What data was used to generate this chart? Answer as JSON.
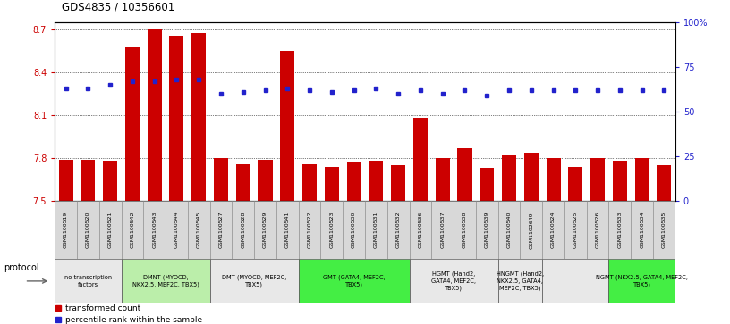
{
  "title": "GDS4835 / 10356601",
  "samples": [
    "GSM1100519",
    "GSM1100520",
    "GSM1100521",
    "GSM1100542",
    "GSM1100543",
    "GSM1100544",
    "GSM1100545",
    "GSM1100527",
    "GSM1100528",
    "GSM1100529",
    "GSM1100541",
    "GSM1100522",
    "GSM1100523",
    "GSM1100530",
    "GSM1100531",
    "GSM1100532",
    "GSM1100536",
    "GSM1100537",
    "GSM1100538",
    "GSM1100539",
    "GSM1100540",
    "GSM1102649",
    "GSM1100524",
    "GSM1100525",
    "GSM1100526",
    "GSM1100533",
    "GSM1100534",
    "GSM1100535"
  ],
  "bar_values": [
    7.79,
    7.79,
    7.78,
    8.58,
    8.7,
    8.66,
    8.68,
    7.8,
    7.76,
    7.79,
    8.55,
    7.76,
    7.74,
    7.77,
    7.78,
    7.75,
    8.08,
    7.8,
    7.87,
    7.73,
    7.82,
    7.84,
    7.8,
    7.74,
    7.8,
    7.78,
    7.8,
    7.75
  ],
  "percentile_values": [
    63,
    63,
    65,
    67,
    67,
    68,
    68,
    60,
    61,
    62,
    63,
    62,
    61,
    62,
    63,
    60,
    62,
    60,
    62,
    59,
    62,
    62,
    62,
    62,
    62,
    62,
    62,
    62
  ],
  "bar_color": "#cc0000",
  "percentile_color": "#2222cc",
  "ylim_left": [
    7.5,
    8.75
  ],
  "ylim_right": [
    0,
    100
  ],
  "yticks_left": [
    7.5,
    7.8,
    8.1,
    8.4,
    8.7
  ],
  "yticks_right": [
    0,
    25,
    50,
    75,
    100
  ],
  "ytick_labels_right": [
    "0",
    "25",
    "50",
    "75",
    "100%"
  ],
  "groups": [
    {
      "label": "no transcription\nfactors",
      "start": 0,
      "end": 3,
      "color": "#e8e8e8"
    },
    {
      "label": "DMNT (MYOCD,\nNKX2.5, MEF2C, TBX5)",
      "start": 3,
      "end": 7,
      "color": "#bbeeaa"
    },
    {
      "label": "DMT (MYOCD, MEF2C,\nTBX5)",
      "start": 7,
      "end": 11,
      "color": "#e8e8e8"
    },
    {
      "label": "GMT (GATA4, MEF2C,\nTBX5)",
      "start": 11,
      "end": 16,
      "color": "#44ee44"
    },
    {
      "label": "HGMT (Hand2,\nGATA4, MEF2C,\nTBX5)",
      "start": 16,
      "end": 20,
      "color": "#e8e8e8"
    },
    {
      "label": "HNGMT (Hand2,\nNKX2.5, GATA4,\nMEF2C, TBX5)",
      "start": 20,
      "end": 22,
      "color": "#e8e8e8"
    },
    {
      "label": "",
      "start": 22,
      "end": 25,
      "color": "#e8e8e8"
    },
    {
      "label": "NGMT (NKX2.5, GATA4, MEF2C,\nTBX5)",
      "start": 25,
      "end": 28,
      "color": "#44ee44"
    }
  ],
  "protocol_label": "protocol",
  "legend_items": [
    {
      "label": "transformed count",
      "color": "#cc0000"
    },
    {
      "label": "percentile rank within the sample",
      "color": "#2222cc"
    }
  ]
}
